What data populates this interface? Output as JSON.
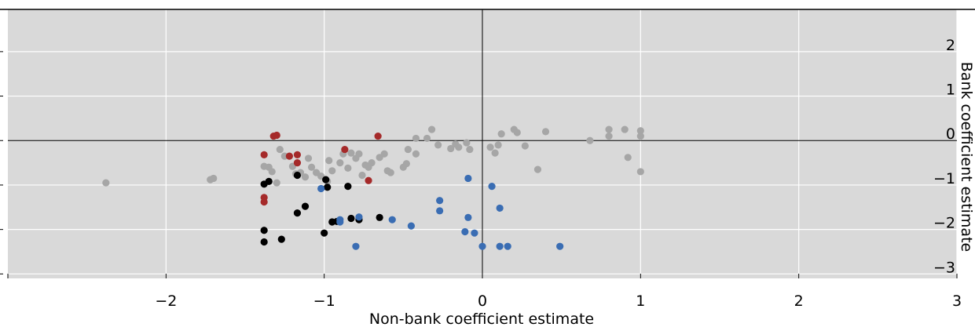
{
  "colors": {
    "background": "#d9d9d9",
    "grid": "#ffffff",
    "axis": "#000000",
    "grey": "#a6a6a6",
    "red": "#a52a2a",
    "black": "#000000",
    "blue": "#3a6db3"
  },
  "chart_data": {
    "type": "scatter",
    "title": "",
    "xlabel": "Non-bank coefficient estimate",
    "ylabel": "Bank coefficient estimate",
    "xlim": [
      -3,
      3
    ],
    "ylim": [
      -3.1,
      2.95
    ],
    "xticks": [
      -2,
      -1,
      0,
      1,
      2,
      3
    ],
    "xtick_labels": [
      "−2",
      "−1",
      "0",
      "1",
      "2",
      "3"
    ],
    "yticks": [
      2,
      1,
      0,
      -1,
      -2,
      -3
    ],
    "ytick_labels": [
      "2",
      "1",
      "0",
      "−1",
      "−2",
      "−3"
    ],
    "grid": true,
    "y_axis_position": "right",
    "zero_lines": true,
    "series": [
      {
        "color": "grey",
        "points": [
          [
            -2.38,
            -0.95
          ],
          [
            -1.72,
            -0.88
          ],
          [
            -1.7,
            -0.85
          ],
          [
            -1.38,
            -0.58
          ],
          [
            -1.35,
            -0.6
          ],
          [
            -1.33,
            -0.7
          ],
          [
            -1.3,
            -0.95
          ],
          [
            -1.28,
            -0.2
          ],
          [
            -1.25,
            -0.35
          ],
          [
            -1.2,
            -0.58
          ],
          [
            -1.18,
            -0.75
          ],
          [
            -1.15,
            -0.72
          ],
          [
            -1.12,
            -0.82
          ],
          [
            -1.1,
            -0.4
          ],
          [
            -1.08,
            -0.6
          ],
          [
            -1.05,
            -0.72
          ],
          [
            -1.02,
            -0.8
          ],
          [
            -0.98,
            -0.92
          ],
          [
            -0.97,
            -0.45
          ],
          [
            -0.95,
            -0.68
          ],
          [
            -0.9,
            -0.5
          ],
          [
            -0.88,
            -0.3
          ],
          [
            -0.85,
            -0.62
          ],
          [
            -0.83,
            -0.28
          ],
          [
            -0.8,
            -0.4
          ],
          [
            -0.78,
            -0.3
          ],
          [
            -0.76,
            -0.78
          ],
          [
            -0.74,
            -0.55
          ],
          [
            -0.72,
            -0.6
          ],
          [
            -0.7,
            -0.5
          ],
          [
            -0.65,
            -0.38
          ],
          [
            -0.62,
            -0.3
          ],
          [
            -0.6,
            -0.68
          ],
          [
            -0.58,
            -0.72
          ],
          [
            -0.5,
            -0.6
          ],
          [
            -0.48,
            -0.52
          ],
          [
            -0.47,
            -0.2
          ],
          [
            -0.42,
            -0.3
          ],
          [
            -0.42,
            0.05
          ],
          [
            -0.35,
            0.05
          ],
          [
            -0.32,
            0.25
          ],
          [
            -0.28,
            -0.1
          ],
          [
            -0.2,
            -0.18
          ],
          [
            -0.17,
            -0.08
          ],
          [
            -0.15,
            -0.15
          ],
          [
            -0.1,
            -0.05
          ],
          [
            -0.08,
            -0.2
          ],
          [
            0.05,
            -0.15
          ],
          [
            0.08,
            -0.28
          ],
          [
            0.1,
            -0.1
          ],
          [
            0.12,
            0.15
          ],
          [
            0.2,
            0.25
          ],
          [
            0.22,
            0.18
          ],
          [
            0.27,
            -0.12
          ],
          [
            0.35,
            -0.65
          ],
          [
            0.4,
            0.2
          ],
          [
            0.68,
            0.0
          ],
          [
            0.8,
            0.1
          ],
          [
            0.8,
            0.25
          ],
          [
            0.9,
            0.25
          ],
          [
            0.92,
            -0.38
          ],
          [
            1.0,
            0.1
          ],
          [
            1.0,
            0.22
          ],
          [
            1.0,
            -0.7
          ]
        ]
      },
      {
        "color": "red",
        "points": [
          [
            -1.38,
            -0.32
          ],
          [
            -1.38,
            -1.28
          ],
          [
            -1.38,
            -1.38
          ],
          [
            -1.32,
            0.1
          ],
          [
            -1.3,
            0.12
          ],
          [
            -1.22,
            -0.35
          ],
          [
            -1.17,
            -0.32
          ],
          [
            -1.17,
            -0.5
          ],
          [
            -0.87,
            -0.2
          ],
          [
            -0.72,
            -0.9
          ],
          [
            -0.66,
            0.1
          ]
        ]
      },
      {
        "color": "black",
        "points": [
          [
            -1.38,
            -0.98
          ],
          [
            -1.35,
            -0.92
          ],
          [
            -1.17,
            -0.78
          ],
          [
            -1.38,
            -2.02
          ],
          [
            -1.38,
            -2.28
          ],
          [
            -1.27,
            -2.22
          ],
          [
            -1.17,
            -1.63
          ],
          [
            -1.12,
            -1.48
          ],
          [
            -1.0,
            -2.08
          ],
          [
            -0.99,
            -0.88
          ],
          [
            -0.98,
            -1.05
          ],
          [
            -0.95,
            -1.83
          ],
          [
            -0.92,
            -1.82
          ],
          [
            -0.85,
            -1.03
          ],
          [
            -0.83,
            -1.75
          ],
          [
            -0.78,
            -1.78
          ],
          [
            -0.65,
            -1.73
          ]
        ]
      },
      {
        "color": "blue",
        "points": [
          [
            -1.02,
            -1.08
          ],
          [
            -0.9,
            -1.78
          ],
          [
            -0.9,
            -1.83
          ],
          [
            -0.8,
            -2.38
          ],
          [
            -0.78,
            -1.72
          ],
          [
            -0.57,
            -1.78
          ],
          [
            -0.45,
            -1.92
          ],
          [
            -0.27,
            -1.35
          ],
          [
            -0.27,
            -1.58
          ],
          [
            -0.11,
            -2.05
          ],
          [
            -0.09,
            -0.85
          ],
          [
            -0.09,
            -1.73
          ],
          [
            -0.05,
            -2.08
          ],
          [
            0.0,
            -2.38
          ],
          [
            0.06,
            -1.03
          ],
          [
            0.11,
            -1.52
          ],
          [
            0.11,
            -2.38
          ],
          [
            0.16,
            -2.38
          ],
          [
            0.49,
            -2.38
          ]
        ]
      }
    ]
  }
}
